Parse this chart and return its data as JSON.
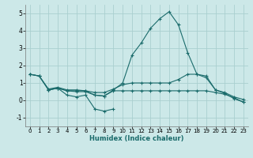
{
  "xlabel": "Humidex (Indice chaleur)",
  "background_color": "#cce8e8",
  "grid_color": "#aacfcf",
  "line_color": "#1a6b6b",
  "ylim": [
    -1.5,
    5.5
  ],
  "xlim": [
    -0.5,
    23.5
  ],
  "yticks": [
    -1,
    0,
    1,
    2,
    3,
    4,
    5
  ],
  "xticks": [
    0,
    1,
    2,
    3,
    4,
    5,
    6,
    7,
    8,
    9,
    10,
    11,
    12,
    13,
    14,
    15,
    16,
    17,
    18,
    19,
    20,
    21,
    22,
    23
  ],
  "series": [
    {
      "x": [
        0,
        1,
        2,
        3,
        4,
        5,
        6,
        7,
        8,
        9,
        10,
        11,
        12,
        13,
        14,
        15,
        16,
        17,
        18,
        19,
        20,
        21,
        22,
        23
      ],
      "y": [
        1.5,
        1.4,
        0.6,
        0.7,
        0.55,
        0.55,
        0.55,
        0.3,
        0.25,
        0.6,
        1.0,
        2.6,
        3.3,
        4.15,
        4.7,
        5.1,
        4.35,
        2.75,
        1.5,
        1.4,
        0.6,
        0.4,
        0.1,
        -0.1
      ]
    },
    {
      "x": [
        0,
        1,
        2,
        3,
        4,
        5,
        6,
        7,
        8,
        9,
        10,
        11,
        12,
        13,
        14,
        15,
        16,
        17,
        18,
        19,
        20,
        21,
        22,
        23
      ],
      "y": [
        1.5,
        1.4,
        0.65,
        0.75,
        0.6,
        0.6,
        0.55,
        0.45,
        0.45,
        0.65,
        0.9,
        1.0,
        1.0,
        1.0,
        1.0,
        1.0,
        1.2,
        1.5,
        1.5,
        1.3,
        0.6,
        0.45,
        0.2,
        0.05
      ]
    },
    {
      "x": [
        0,
        1,
        2,
        3,
        4,
        5,
        6,
        7,
        8,
        9,
        10,
        11,
        12,
        13,
        14,
        15,
        16,
        17,
        18,
        19,
        20,
        21,
        22,
        23
      ],
      "y": [
        1.5,
        1.4,
        0.6,
        0.7,
        0.55,
        0.5,
        0.5,
        0.3,
        0.25,
        0.55,
        0.55,
        0.55,
        0.55,
        0.55,
        0.55,
        0.55,
        0.55,
        0.55,
        0.55,
        0.55,
        0.45,
        0.35,
        0.15,
        -0.1
      ]
    },
    {
      "x": [
        2,
        3,
        4,
        5,
        6,
        7,
        8,
        9
      ],
      "y": [
        0.6,
        0.7,
        0.3,
        0.2,
        0.3,
        -0.5,
        -0.62,
        -0.5
      ]
    }
  ]
}
